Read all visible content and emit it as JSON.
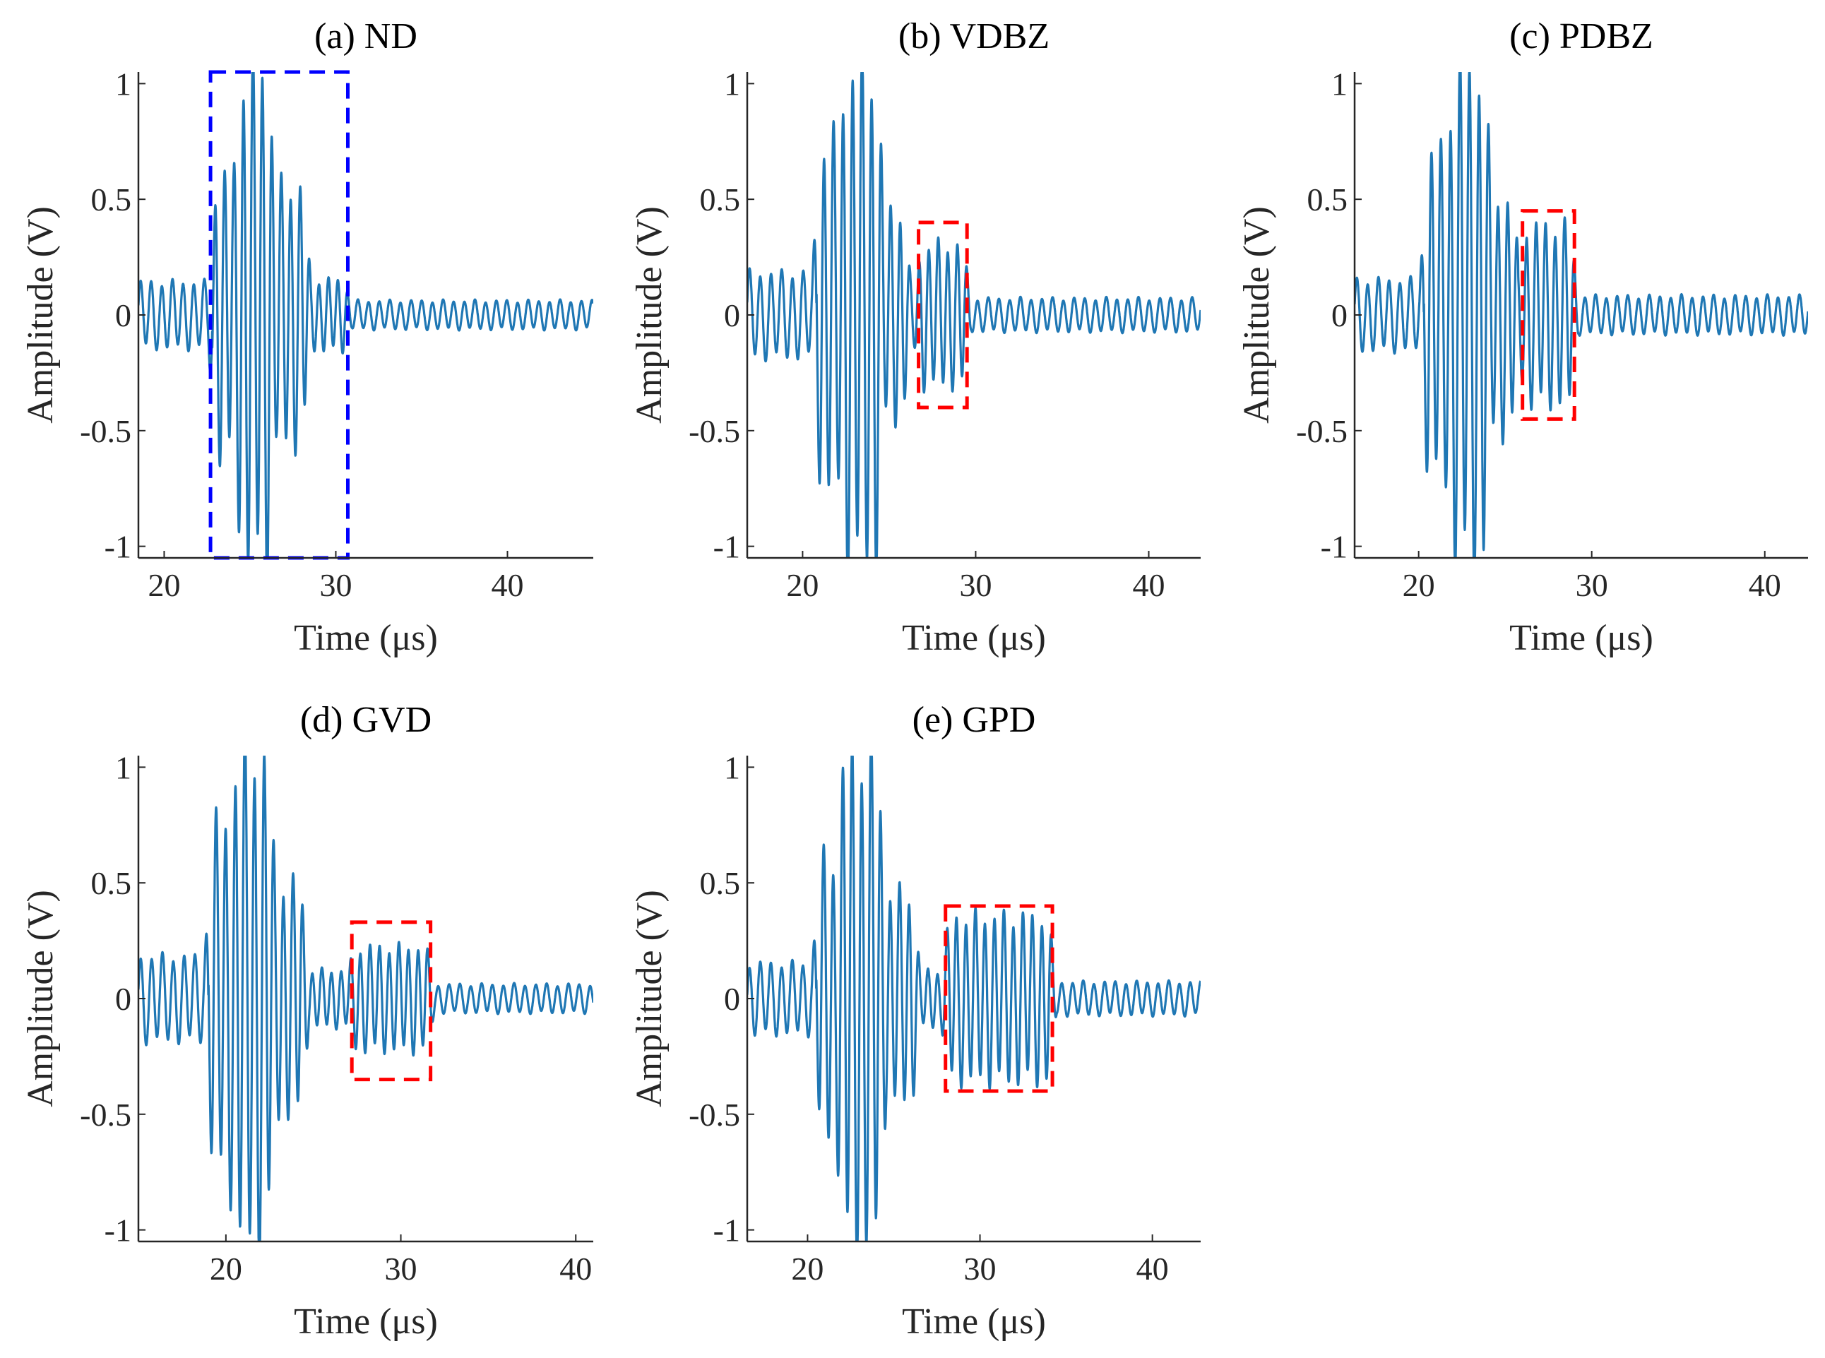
{
  "figure": {
    "background": "#ffffff",
    "line_color": "#1f77b4",
    "axis_color": "#262626"
  },
  "chart_data": [
    {
      "id": "a",
      "type": "line",
      "title": "(a) ND",
      "xlabel": "Time (μs)",
      "ylabel": "Amplitude (V)",
      "xlim": [
        18.5,
        45
      ],
      "ylim": [
        -1.05,
        1.05
      ],
      "xticks": [
        20,
        30,
        40
      ],
      "yticks": [
        -1,
        -0.5,
        0,
        0.5,
        1
      ],
      "ytick_labels": [
        "-1",
        "-0.5",
        "0",
        "0.5",
        "1"
      ],
      "highlight": {
        "color": "#0000ff",
        "x": [
          22.7,
          30.7
        ],
        "y": [
          -1.05,
          1.05
        ]
      },
      "series": [
        {
          "name": "signal",
          "segments": [
            {
              "t0": 18.5,
              "t1": 22.8,
              "period": 0.62,
              "amp": 0.14,
              "phase": 0.3
            },
            {
              "t0": 22.8,
              "t1": 24.3,
              "period": 0.55,
              "amp": 0.6,
              "phase": 0.0
            },
            {
              "t0": 24.3,
              "t1": 26.3,
              "period": 0.55,
              "amp": 1.05,
              "phase": 0.0
            },
            {
              "t0": 26.3,
              "t1": 28.3,
              "period": 0.55,
              "amp": 0.55,
              "phase": 0.0
            },
            {
              "t0": 28.3,
              "t1": 30.7,
              "period": 0.55,
              "amp": 0.15,
              "phase": 0.0
            },
            {
              "t0": 30.7,
              "t1": 45.0,
              "period": 0.62,
              "amp": 0.06,
              "phase": 0.0
            }
          ]
        }
      ]
    },
    {
      "id": "b",
      "type": "line",
      "title": "(b) VDBZ",
      "xlabel": "Time (μs)",
      "ylabel": "Amplitude (V)",
      "xlim": [
        16.8,
        43
      ],
      "ylim": [
        -1.05,
        1.05
      ],
      "xticks": [
        20,
        30,
        40
      ],
      "yticks": [
        -1,
        -0.5,
        0,
        0.5,
        1
      ],
      "ytick_labels": [
        "-1",
        "-0.5",
        "0",
        "0.5",
        "1"
      ],
      "highlight": {
        "color": "#ff0000",
        "x": [
          26.7,
          29.5
        ],
        "y": [
          -0.4,
          0.4
        ]
      },
      "series": [
        {
          "name": "signal",
          "segments": [
            {
              "t0": 16.8,
              "t1": 20.8,
              "period": 0.62,
              "amp": 0.18,
              "phase": 0.2
            },
            {
              "t0": 20.8,
              "t1": 22.3,
              "period": 0.55,
              "amp": 0.75,
              "phase": 0.0
            },
            {
              "t0": 22.3,
              "t1": 24.5,
              "period": 0.55,
              "amp": 1.05,
              "phase": 0.0
            },
            {
              "t0": 24.5,
              "t1": 26.0,
              "period": 0.55,
              "amp": 0.45,
              "phase": 0.0
            },
            {
              "t0": 26.0,
              "t1": 26.7,
              "period": 0.55,
              "amp": 0.15,
              "phase": 0.0
            },
            {
              "t0": 26.7,
              "t1": 29.5,
              "period": 0.55,
              "amp": 0.3,
              "phase": 0.0
            },
            {
              "t0": 29.5,
              "t1": 43.0,
              "period": 0.62,
              "amp": 0.07,
              "phase": 0.0
            }
          ]
        }
      ]
    },
    {
      "id": "c",
      "type": "line",
      "title": "(c) PDBZ",
      "xlabel": "Time (μs)",
      "ylabel": "Amplitude (V)",
      "xlim": [
        16.3,
        42.5
      ],
      "ylim": [
        -1.05,
        1.05
      ],
      "xticks": [
        20,
        30,
        40
      ],
      "yticks": [
        -1,
        -0.5,
        0,
        0.5,
        1
      ],
      "ytick_labels": [
        "-1",
        "-0.5",
        "0",
        "0.5",
        "1"
      ],
      "highlight": {
        "color": "#ff0000",
        "x": [
          26.0,
          29.0
        ],
        "y": [
          -0.45,
          0.45
        ]
      },
      "series": [
        {
          "name": "signal",
          "segments": [
            {
              "t0": 16.3,
              "t1": 20.3,
              "period": 0.62,
              "amp": 0.15,
              "phase": 0.2
            },
            {
              "t0": 20.3,
              "t1": 21.8,
              "period": 0.55,
              "amp": 0.7,
              "phase": 0.0
            },
            {
              "t0": 21.8,
              "t1": 24.0,
              "period": 0.55,
              "amp": 1.05,
              "phase": 0.0
            },
            {
              "t0": 24.0,
              "t1": 25.6,
              "period": 0.55,
              "amp": 0.5,
              "phase": 0.0
            },
            {
              "t0": 25.6,
              "t1": 26.0,
              "period": 0.55,
              "amp": 0.2,
              "phase": 0.0
            },
            {
              "t0": 26.0,
              "t1": 29.0,
              "period": 0.55,
              "amp": 0.38,
              "phase": 0.0
            },
            {
              "t0": 29.0,
              "t1": 42.5,
              "period": 0.62,
              "amp": 0.08,
              "phase": 0.0
            }
          ]
        }
      ]
    },
    {
      "id": "d",
      "type": "line",
      "title": "(d) GVD",
      "xlabel": "Time (μs)",
      "ylabel": "Amplitude (V)",
      "xlim": [
        15,
        41
      ],
      "ylim": [
        -1.05,
        1.05
      ],
      "xticks": [
        20,
        30,
        40
      ],
      "yticks": [
        -1,
        -0.5,
        0,
        0.5,
        1
      ],
      "ytick_labels": [
        "-1",
        "-0.5",
        "0",
        "0.5",
        "1"
      ],
      "highlight": {
        "color": "#ff0000",
        "x": [
          27.2,
          31.7
        ],
        "y": [
          -0.35,
          0.33
        ]
      },
      "series": [
        {
          "name": "signal",
          "segments": [
            {
              "t0": 15.0,
              "t1": 19.0,
              "period": 0.62,
              "amp": 0.18,
              "phase": 0.2
            },
            {
              "t0": 19.0,
              "t1": 20.4,
              "period": 0.55,
              "amp": 0.75,
              "phase": 0.0
            },
            {
              "t0": 20.4,
              "t1": 22.6,
              "period": 0.55,
              "amp": 1.05,
              "phase": 0.0
            },
            {
              "t0": 22.6,
              "t1": 24.5,
              "period": 0.55,
              "amp": 0.5,
              "phase": 0.0
            },
            {
              "t0": 24.5,
              "t1": 27.2,
              "period": 0.55,
              "amp": 0.12,
              "phase": 0.0
            },
            {
              "t0": 27.2,
              "t1": 31.7,
              "period": 0.55,
              "amp": 0.22,
              "phase": 0.0
            },
            {
              "t0": 31.7,
              "t1": 41.0,
              "period": 0.62,
              "amp": 0.06,
              "phase": 0.0
            }
          ]
        }
      ]
    },
    {
      "id": "e",
      "type": "line",
      "title": "(e) GPD",
      "xlabel": "Time (μs)",
      "ylabel": "Amplitude (V)",
      "xlim": [
        16.5,
        42.8
      ],
      "ylim": [
        -1.05,
        1.05
      ],
      "xticks": [
        20,
        30,
        40
      ],
      "yticks": [
        -1,
        -0.5,
        0,
        0.5,
        1
      ],
      "ytick_labels": [
        "-1",
        "-0.5",
        "0",
        "0.5",
        "1"
      ],
      "highlight": {
        "color": "#ff0000",
        "x": [
          28.0,
          34.2
        ],
        "y": [
          -0.4,
          0.4
        ]
      },
      "series": [
        {
          "name": "signal",
          "segments": [
            {
              "t0": 16.5,
              "t1": 20.5,
              "period": 0.62,
              "amp": 0.15,
              "phase": 0.2
            },
            {
              "t0": 20.5,
              "t1": 21.9,
              "period": 0.55,
              "amp": 0.6,
              "phase": 0.0
            },
            {
              "t0": 21.9,
              "t1": 24.3,
              "period": 0.55,
              "amp": 1.05,
              "phase": 0.0
            },
            {
              "t0": 24.3,
              "t1": 26.3,
              "period": 0.55,
              "amp": 0.45,
              "phase": 0.0
            },
            {
              "t0": 26.3,
              "t1": 28.0,
              "period": 0.55,
              "amp": 0.12,
              "phase": 0.0
            },
            {
              "t0": 28.0,
              "t1": 34.2,
              "period": 0.55,
              "amp": 0.35,
              "phase": 0.0
            },
            {
              "t0": 34.2,
              "t1": 42.8,
              "period": 0.62,
              "amp": 0.07,
              "phase": 0.0
            }
          ]
        }
      ]
    }
  ]
}
